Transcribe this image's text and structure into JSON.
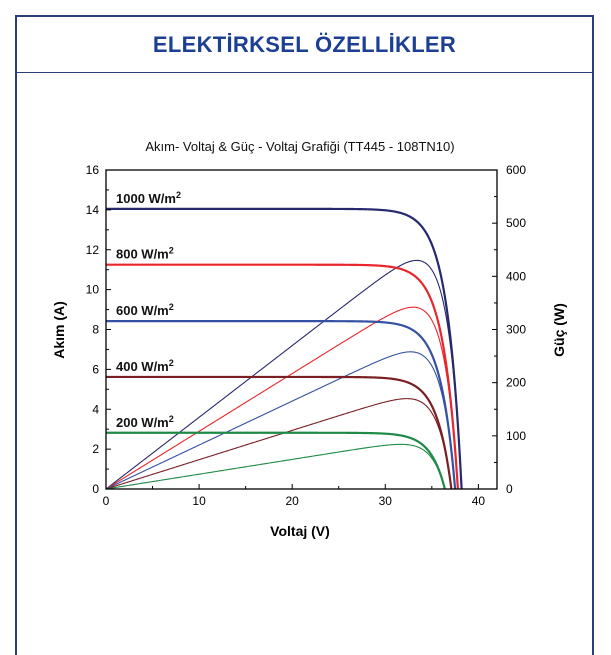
{
  "header": {
    "title": "ELEKTİRKSEL ÖZELLİKLER"
  },
  "colors": {
    "frame": "#2b3f78",
    "title": "#1c3f94",
    "series_1000": "#27296e",
    "series_800": "#e8262b",
    "series_600": "#3451a3",
    "series_400": "#7a1f24",
    "series_200": "#1f8a46"
  },
  "chart_data": {
    "type": "line",
    "title": "Akım- Voltaj & Güç - Voltaj Grafiği (TT445 - 108TN10)",
    "xlabel": "Voltaj (V)",
    "ylabel": "Akım (A)",
    "y2label": "Güç (W)",
    "xlim": [
      0,
      42
    ],
    "ylim": [
      0,
      16
    ],
    "y2lim": [
      0,
      600
    ],
    "xticks": [
      0,
      10,
      20,
      30,
      40
    ],
    "yticks": [
      0,
      2,
      4,
      6,
      8,
      10,
      12,
      14,
      16
    ],
    "y2ticks": [
      0,
      100,
      200,
      300,
      400,
      500,
      600
    ],
    "grid": false,
    "irradiance_unit": "W/m",
    "unit_superscript": "2",
    "series": [
      {
        "name": "1000",
        "isc": 14.05,
        "voc": 38.2,
        "vmp": 32.4,
        "pmax": 430,
        "color": "#27296e"
      },
      {
        "name": "800",
        "isc": 11.25,
        "voc": 37.8,
        "vmp": 32.3,
        "pmax": 342,
        "color": "#e8262b"
      },
      {
        "name": "600",
        "isc": 8.42,
        "voc": 37.5,
        "vmp": 32.1,
        "pmax": 258,
        "color": "#3451a3"
      },
      {
        "name": "400",
        "isc": 5.62,
        "voc": 37.1,
        "vmp": 32.0,
        "pmax": 170,
        "color": "#7a1f24"
      },
      {
        "name": "200",
        "isc": 2.82,
        "voc": 36.4,
        "vmp": 31.8,
        "pmax": 84,
        "color": "#1f8a46"
      }
    ]
  }
}
